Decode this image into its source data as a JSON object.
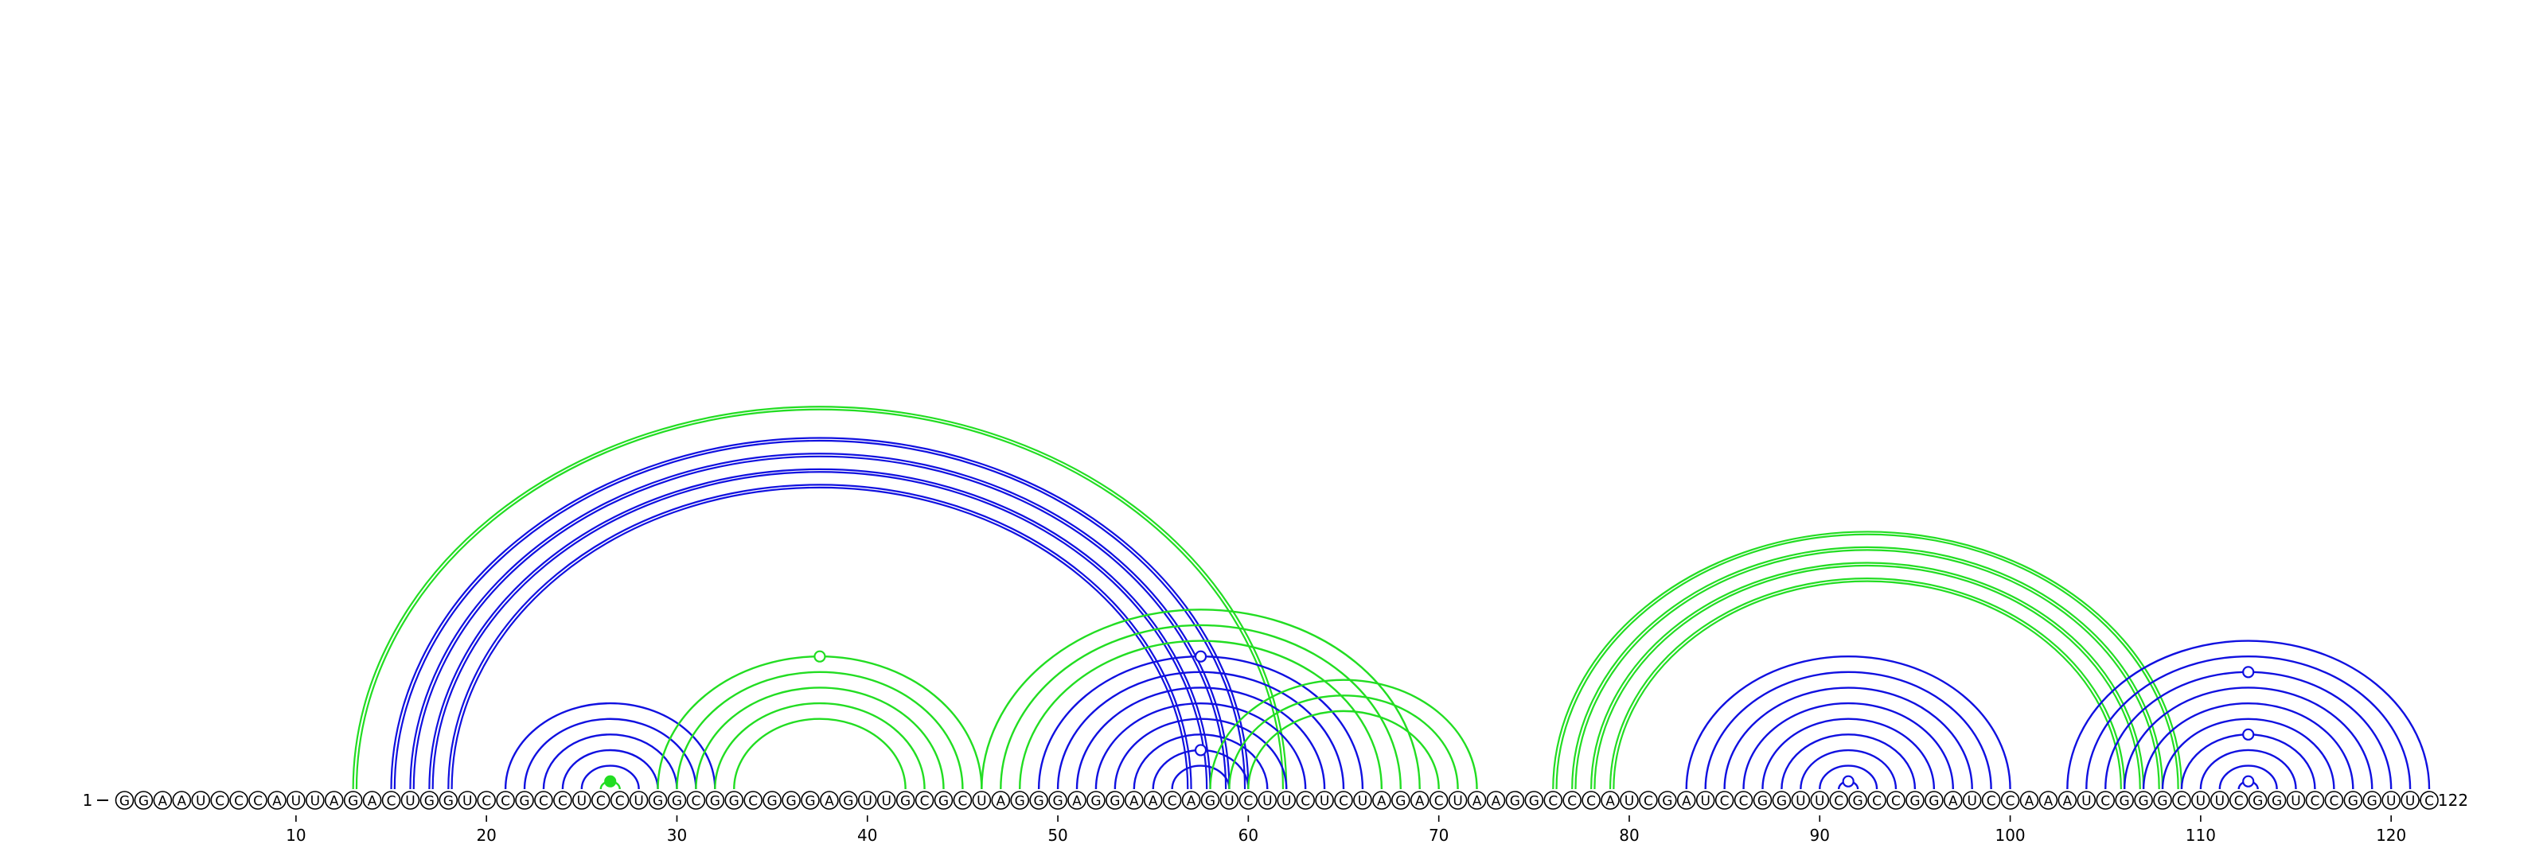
{
  "sequence": "GGAAUCCCAUUAGACUGGUCCGCCUCCUGGCGGCGGGAGUUGCGCUAGGGAGGAACAGUCUUCUCUAGACUAAGGCCCAUCGAUCCGGUUCGCCGGAUCCAAAUCGGGCUUCGGUCCGGUUC",
  "start_label": "1",
  "end_label": "122",
  "ticks": [
    10,
    20,
    30,
    40,
    50,
    60,
    70,
    80,
    90,
    100,
    110,
    120
  ],
  "colors": {
    "blue": "#1010e0",
    "green": "#22dd22",
    "node_fill": "#ffffff",
    "node_stroke": "#000000"
  },
  "helices": [
    {
      "color": "blue",
      "style": "double",
      "pairs": [
        [
          15,
          60
        ],
        [
          16,
          59
        ],
        [
          17,
          58
        ],
        [
          18,
          57
        ]
      ]
    },
    {
      "color": "green",
      "style": "double",
      "pairs": [
        [
          13,
          62
        ]
      ]
    },
    {
      "color": "blue",
      "style": "single",
      "pairs": [
        [
          21,
          32
        ],
        [
          22,
          31
        ],
        [
          23,
          30
        ],
        [
          24,
          29
        ],
        [
          25,
          28
        ]
      ]
    },
    {
      "color": "green",
      "style": "single",
      "pairs": [
        [
          26,
          27
        ]
      ],
      "marker": {
        "type": "filled",
        "at": 0
      }
    },
    {
      "color": "green",
      "style": "single",
      "pairs": [
        [
          29,
          46
        ],
        [
          30,
          45
        ],
        [
          31,
          44
        ],
        [
          32,
          43
        ],
        [
          33,
          42
        ]
      ],
      "marker": {
        "type": "open",
        "at": 0
      }
    },
    {
      "color": "blue",
      "style": "single",
      "pairs": [
        [
          49,
          66
        ],
        [
          50,
          65
        ],
        [
          51,
          64
        ],
        [
          52,
          63
        ],
        [
          53,
          62
        ],
        [
          54,
          61
        ],
        [
          55,
          60
        ],
        [
          56,
          59
        ]
      ],
      "marker": {
        "type": "open",
        "at": 0
      },
      "marker2": {
        "type": "open",
        "at": 6
      }
    },
    {
      "color": "green",
      "style": "single",
      "pairs": [
        [
          46,
          69
        ],
        [
          47,
          68
        ],
        [
          48,
          67
        ]
      ]
    },
    {
      "color": "green",
      "style": "single",
      "pairs": [
        [
          58,
          72
        ],
        [
          59,
          71
        ],
        [
          60,
          70
        ]
      ]
    },
    {
      "color": "green",
      "style": "double",
      "pairs": [
        [
          76,
          109
        ],
        [
          77,
          108
        ],
        [
          78,
          107
        ],
        [
          79,
          106
        ]
      ]
    },
    {
      "color": "blue",
      "style": "single",
      "pairs": [
        [
          83,
          100
        ],
        [
          84,
          99
        ],
        [
          85,
          98
        ],
        [
          86,
          97
        ],
        [
          87,
          96
        ],
        [
          88,
          95
        ],
        [
          89,
          94
        ],
        [
          90,
          93
        ],
        [
          91,
          92
        ]
      ],
      "marker": {
        "type": "open",
        "at": 8
      }
    },
    {
      "color": "blue",
      "style": "single",
      "pairs": [
        [
          103,
          122
        ],
        [
          104,
          121
        ],
        [
          105,
          120
        ],
        [
          106,
          119
        ],
        [
          107,
          118
        ],
        [
          108,
          117
        ],
        [
          109,
          116
        ],
        [
          110,
          115
        ],
        [
          111,
          114
        ],
        [
          112,
          113
        ]
      ],
      "marker": {
        "type": "open",
        "at": 2
      },
      "marker2": {
        "type": "open",
        "at": 6
      },
      "marker3": {
        "type": "open",
        "at": 9
      }
    }
  ]
}
